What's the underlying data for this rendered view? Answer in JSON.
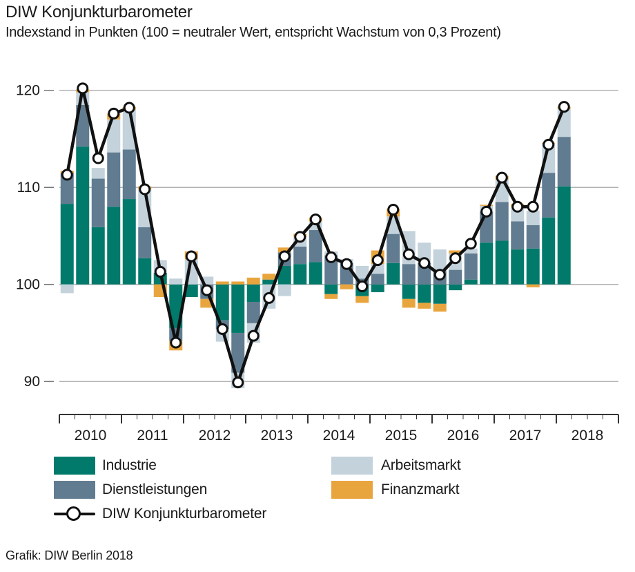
{
  "header": {
    "title": "DIW Konjunkturbarometer",
    "subtitle": "Indexstand in Punkten (100 = neutraler Wert, entspricht Wachstum von 0,3 Prozent)"
  },
  "footer": {
    "credit": "Grafik: DIW Berlin 2018"
  },
  "colors": {
    "industrie": "#017a6b",
    "dienstleistungen": "#617c90",
    "arbeitsmarkt": "#c3d2db",
    "finanzmarkt": "#e8a53e",
    "line": "#111111",
    "grid": "#b3b3b3",
    "axis": "#333333",
    "text": "#1a1a1a"
  },
  "legend": {
    "items": [
      {
        "label": "Industrie",
        "color": "#017a6b"
      },
      {
        "label": "Dienstleistungen",
        "color": "#617c90"
      },
      {
        "label": "Arbeitsmarkt",
        "color": "#c3d2db"
      },
      {
        "label": "Finanzmarkt",
        "color": "#e8a53e"
      }
    ],
    "line_item": {
      "label": "DIW Konjunkturbarometer",
      "color": "#111111"
    }
  },
  "chart_data": {
    "type": "stacked-bar-with-line",
    "title": "DIW Konjunkturbarometer",
    "baseline": 100,
    "ylim": [
      86.5,
      121.5
    ],
    "yticks": [
      90,
      100,
      110,
      120
    ],
    "grid": true,
    "legend_position": "bottom-left",
    "x_years": [
      2010,
      2011,
      2012,
      2013,
      2014,
      2015,
      2016,
      2017,
      2018
    ],
    "quarters_per_year": 4,
    "x": [
      "2010 Q1",
      "2010 Q2",
      "2010 Q3",
      "2010 Q4",
      "2011 Q1",
      "2011 Q2",
      "2011 Q3",
      "2011 Q4",
      "2012 Q1",
      "2012 Q2",
      "2012 Q3",
      "2012 Q4",
      "2013 Q1",
      "2013 Q2",
      "2013 Q3",
      "2013 Q4",
      "2014 Q1",
      "2014 Q2",
      "2014 Q3",
      "2014 Q4",
      "2015 Q1",
      "2015 Q2",
      "2015 Q3",
      "2015 Q4",
      "2016 Q1",
      "2016 Q2",
      "2016 Q3",
      "2016 Q4",
      "2017 Q1",
      "2017 Q2",
      "2017 Q3",
      "2017 Q4",
      "2018 Q1"
    ],
    "series": [
      {
        "name": "Industrie",
        "color": "#017a6b",
        "values": [
          8.3,
          14.2,
          5.9,
          8.0,
          8.8,
          2.7,
          1.2,
          -4.5,
          -1.3,
          0,
          -3.7,
          -5.0,
          -1.8,
          0.5,
          1.9,
          2.1,
          2.3,
          -1.0,
          0,
          -1.2,
          -0.8,
          2.2,
          -1.5,
          -1.9,
          -2.0,
          -0.6,
          0.5,
          4.3,
          4.5,
          3.6,
          3.7,
          6.9,
          10.1
        ]
      },
      {
        "name": "Dienstleistungen",
        "color": "#617c90",
        "values": [
          3.2,
          4.3,
          5.0,
          5.6,
          5.1,
          3.2,
          0,
          -1.3,
          0,
          -1.5,
          -0.9,
          -4.1,
          -2.2,
          0,
          1.4,
          1.8,
          3.3,
          3.0,
          2.2,
          0.6,
          1.1,
          3.0,
          2.1,
          2.2,
          1.4,
          1.5,
          2.7,
          3.2,
          4.0,
          2.9,
          2.4,
          4.6,
          5.1
        ]
      },
      {
        "name": "Arbeitsmarkt",
        "color": "#c3d2db",
        "values": [
          -0.9,
          1.3,
          1.1,
          3.4,
          4.1,
          3.9,
          1.3,
          0.6,
          2.6,
          0.8,
          -1.3,
          -1.6,
          -2.0,
          -2.5,
          -1.2,
          1.0,
          0.9,
          0.4,
          0.4,
          1.3,
          1.0,
          1.8,
          3.4,
          2.1,
          2.2,
          1.7,
          0.5,
          0.6,
          2.3,
          1.5,
          1.5,
          3.0,
          2.9
        ]
      },
      {
        "name": "Finanzmarkt",
        "color": "#e8a53e",
        "values": [
          0.2,
          0.3,
          0,
          0.6,
          0.3,
          0.3,
          -1.3,
          -1.0,
          0.8,
          -0.9,
          0.3,
          0.3,
          0.7,
          0.6,
          0.5,
          0.3,
          0.4,
          -0.5,
          -0.5,
          -0.7,
          1.4,
          0.8,
          -0.9,
          -0.6,
          -0.8,
          0.3,
          0,
          0.1,
          0.4,
          0.3,
          -0.3,
          0.1,
          0.2
        ]
      }
    ],
    "line": {
      "name": "DIW Konjunkturbarometer",
      "color": "#111111",
      "values": [
        111.3,
        120.2,
        113.0,
        117.6,
        118.2,
        109.8,
        101.3,
        94.0,
        102.9,
        99.4,
        95.4,
        89.9,
        94.7,
        98.6,
        102.9,
        104.9,
        106.7,
        102.8,
        102.1,
        99.8,
        102.5,
        107.7,
        103.1,
        102.2,
        101.0,
        102.7,
        104.2,
        107.5,
        111.0,
        108.0,
        108.0,
        114.4,
        118.3
      ]
    }
  }
}
